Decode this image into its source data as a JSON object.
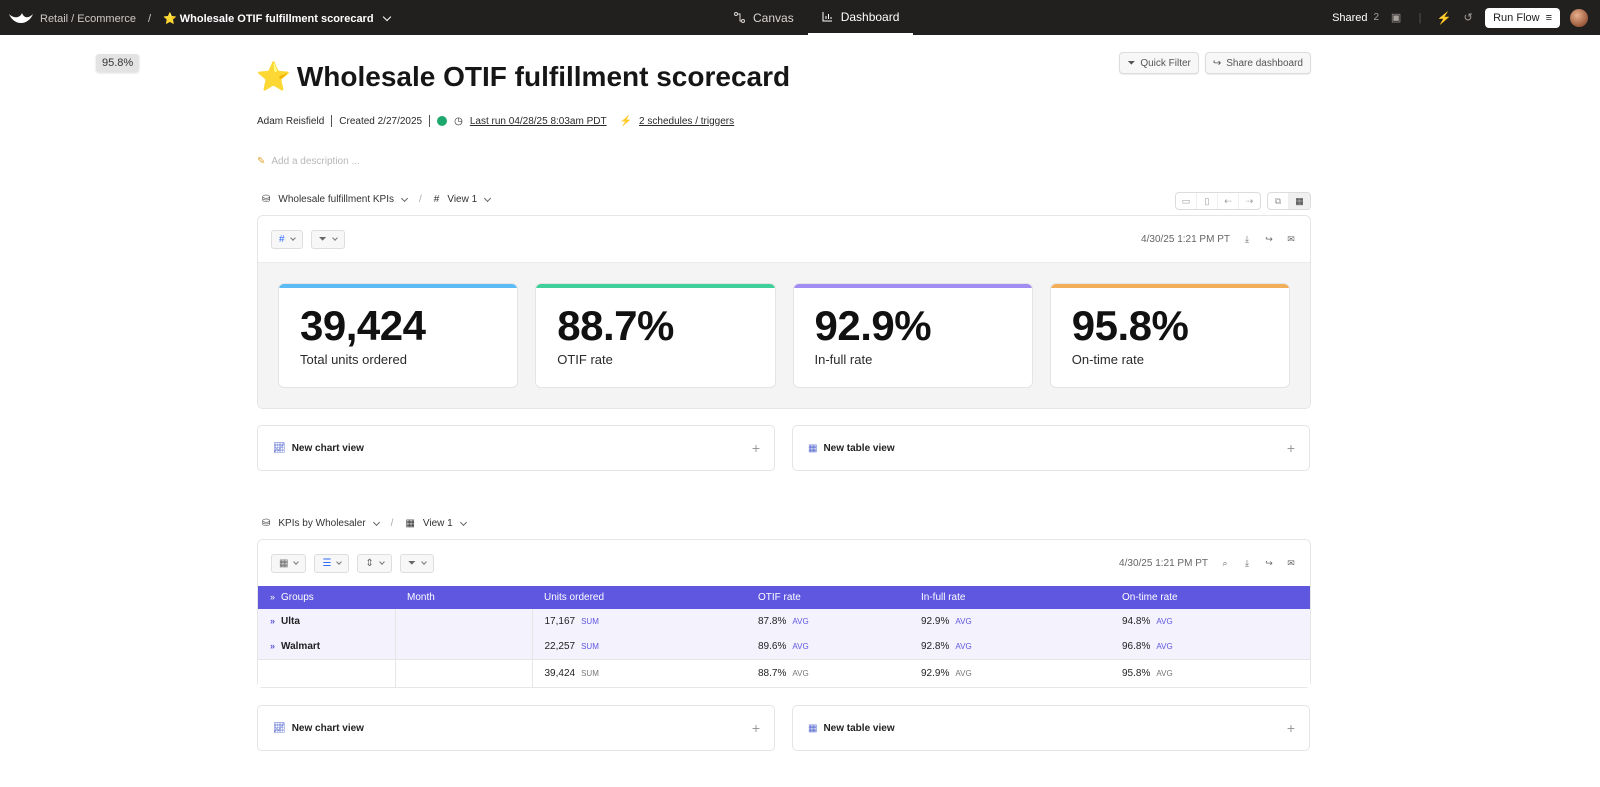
{
  "topbar": {
    "breadcrumb_parent": "Retail / Ecommerce",
    "breadcrumb_sep": "/",
    "breadcrumb_current": "⭐ Wholesale OTIF fulfillment scorecard",
    "tabs": [
      {
        "label": "Canvas",
        "icon": "canvas-icon"
      },
      {
        "label": "Dashboard",
        "icon": "chart-icon"
      }
    ],
    "shared_label": "Shared",
    "shared_count": "2",
    "run_flow_label": "Run Flow"
  },
  "tooltip": "95.8%",
  "page": {
    "star": "⭐",
    "title": "Wholesale OTIF fulfillment scorecard",
    "author": "Adam Reisfield",
    "created": "Created 2/27/2025",
    "last_run": "Last run 04/28/25 8:03am PDT",
    "schedules": "2 schedules / triggers",
    "description_placeholder": "Add a description ..."
  },
  "buttons": {
    "quick_filter": "Quick Filter",
    "share_dashboard": "Share dashboard"
  },
  "section1": {
    "source": "Wholesale fulfillment KPIs",
    "view": "View 1",
    "timestamp": "4/30/25 1:21 PM PT",
    "kpis": [
      {
        "value": "39,424",
        "label": "Total units ordered",
        "color": "#5bbcf5"
      },
      {
        "value": "88.7%",
        "label": "OTIF rate",
        "color": "#3fcf9a"
      },
      {
        "value": "92.9%",
        "label": "In-full rate",
        "color": "#a08cf2"
      },
      {
        "value": "95.8%",
        "label": "On-time rate",
        "color": "#f3ae5a"
      }
    ],
    "new_chart": "New chart view",
    "new_table": "New table view"
  },
  "section2": {
    "source": "KPIs by Wholesaler",
    "view": "View 1",
    "timestamp": "4/30/25 1:21 PM PT",
    "columns": [
      "Groups",
      "Month",
      "Units ordered",
      "OTIF rate",
      "In-full rate",
      "On-time rate"
    ],
    "rows": [
      {
        "group": "Ulta",
        "units": "17,167",
        "units_agg": "SUM",
        "otif": "87.8%",
        "otif_agg": "AVG",
        "infull": "92.9%",
        "infull_agg": "AVG",
        "ontime": "94.8%",
        "ontime_agg": "AVG"
      },
      {
        "group": "Walmart",
        "units": "22,257",
        "units_agg": "SUM",
        "otif": "89.6%",
        "otif_agg": "AVG",
        "infull": "92.8%",
        "infull_agg": "AVG",
        "ontime": "96.8%",
        "ontime_agg": "AVG"
      }
    ],
    "total": {
      "units": "39,424",
      "units_agg": "SUM",
      "otif": "88.7%",
      "otif_agg": "AVG",
      "infull": "92.9%",
      "infull_agg": "AVG",
      "ontime": "95.8%",
      "ontime_agg": "AVG"
    },
    "new_chart": "New chart view",
    "new_table": "New table view"
  },
  "colors": {
    "topbar_bg": "#221f1f",
    "table_header": "#5f57e0",
    "group_row_bg": "#f3f2fd"
  }
}
